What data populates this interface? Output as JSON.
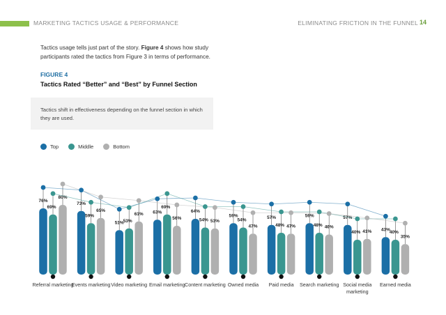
{
  "header": {
    "left_title": "MARKETING TACTICS USAGE & PERFORMANCE",
    "right_title": "ELIMINATING FRICTION IN THE FUNNEL",
    "page_number": "14",
    "accent_color": "#8dc04b"
  },
  "intro": {
    "text_before": "Tactics usage tells just part of the story. ",
    "text_bold": "Figure 4",
    "text_after": " shows how study participants rated the tactics from Figure 3 in terms of performance."
  },
  "figure": {
    "label": "FIGURE 4",
    "title": "Tactics Rated “Better” and “Best” by Funnel Section",
    "callout": "Tactics shift in effectiveness depending on the funnel section in which they are used."
  },
  "chart_data": {
    "type": "bar",
    "categories": [
      "Referral marketing",
      "Events marketing",
      "Video marketing",
      "Email marketing",
      "Content marketing",
      "Owned media",
      "Paid media",
      "Search marketing",
      "Social media marketing",
      "Earned media"
    ],
    "series": [
      {
        "name": "Top",
        "color": "#1b6fa6",
        "values": [
          76,
          73,
          51,
          63,
          64,
          59,
          57,
          59,
          57,
          43
        ]
      },
      {
        "name": "Middle",
        "color": "#3a9690",
        "values": [
          69,
          59,
          53,
          69,
          54,
          54,
          48,
          48,
          40,
          40
        ]
      },
      {
        "name": "Bottom",
        "color": "#b0b0b0",
        "values": [
          80,
          65,
          61,
          56,
          53,
          47,
          47,
          46,
          41,
          35
        ]
      }
    ],
    "value_labels": [
      [
        "76%",
        "69%",
        "80%"
      ],
      [
        "73%",
        "59%",
        "65%"
      ],
      [
        "51%",
        "53%",
        "61%"
      ],
      [
        "63%",
        "69%",
        "56%"
      ],
      [
        "64%",
        "54%",
        "53%"
      ],
      [
        "59%",
        "54%",
        "47%"
      ],
      [
        "57%",
        "48%",
        "47%"
      ],
      [
        "59%",
        "48%",
        "46%"
      ],
      [
        "57%",
        "40%",
        "41%"
      ],
      [
        "43%",
        "40%",
        "35%"
      ]
    ],
    "legend_position": "top-left",
    "grid": false
  }
}
